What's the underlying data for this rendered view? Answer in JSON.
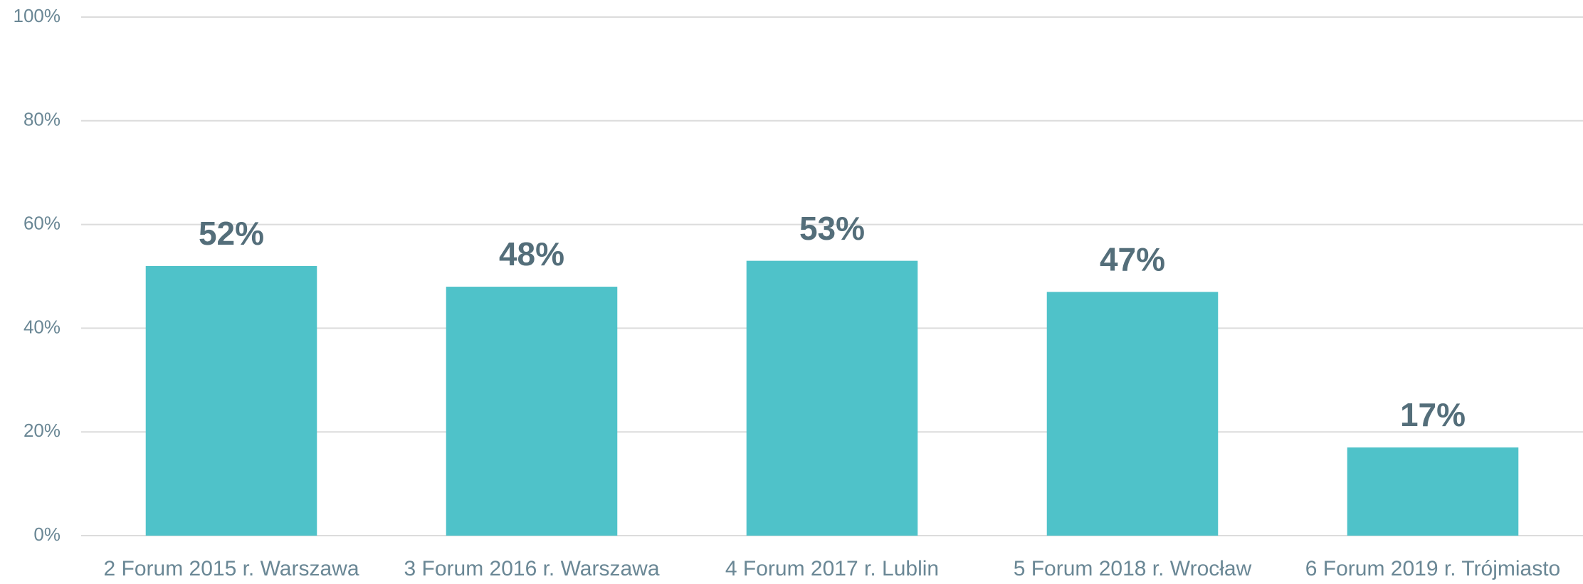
{
  "chart_data": {
    "type": "bar",
    "categories": [
      "2 Forum 2015 r. Warszawa",
      "3 Forum 2016 r. Warszawa",
      "4 Forum 2017 r. Lublin",
      "5 Forum 2018 r. Wrocław",
      "6 Forum 2019 r. Trójmiasto"
    ],
    "values": [
      52,
      48,
      53,
      47,
      17
    ],
    "value_labels": [
      "52%",
      "48%",
      "53%",
      "47%",
      "17%"
    ],
    "color": "#4fc2c9",
    "ylim": [
      0,
      100
    ],
    "yticks": [
      {
        "value": 0,
        "label": "0%"
      },
      {
        "value": 20,
        "label": "20%"
      },
      {
        "value": 40,
        "label": "40%"
      },
      {
        "value": 60,
        "label": "60%"
      },
      {
        "value": 80,
        "label": "80%"
      },
      {
        "value": 100,
        "label": "100%"
      }
    ],
    "grid": true
  }
}
